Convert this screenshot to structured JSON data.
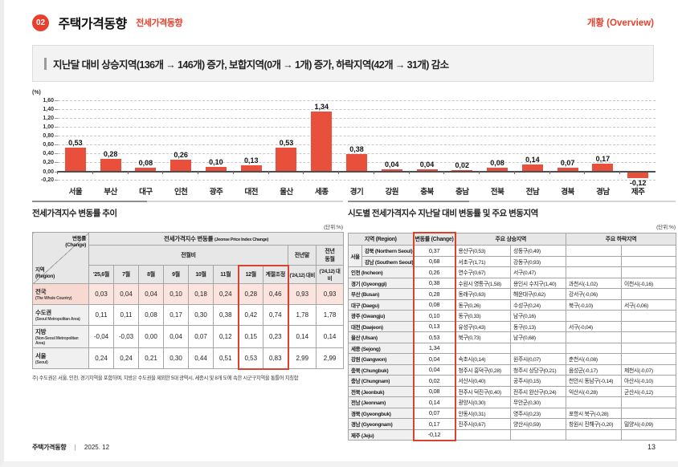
{
  "page": {
    "badge": "02",
    "title": "주택가격동향",
    "subtitle": "전세가격동향",
    "overview_label": "개황 (Overview)",
    "summary": "지난달 대비 상승지역(136개 → 146개) 증가, 보합지역(0개 → 1개) 증가, 하락지역(42개 → 31개) 감소",
    "footer_left": "주택가격동향",
    "footer_divider": "|",
    "footer_date": "2025. 12",
    "page_number": "13"
  },
  "colors": {
    "accent": "#e8402d",
    "bar": "#e8503b",
    "highlight_row": "#fbe3de",
    "red_box_border": "#d9432e"
  },
  "chart_data": {
    "type": "bar",
    "title": "",
    "xlabel": "",
    "ylabel": "(%)",
    "unit_label": "(%)",
    "categories": [
      "서울",
      "부산",
      "대구",
      "인천",
      "광주",
      "대전",
      "울산",
      "세종",
      "경기",
      "강원",
      "충북",
      "충남",
      "전북",
      "전남",
      "경북",
      "경남",
      "제주"
    ],
    "values": [
      0.53,
      0.28,
      0.08,
      0.26,
      0.1,
      0.13,
      0.53,
      1.34,
      0.38,
      0.04,
      0.04,
      0.02,
      0.08,
      0.14,
      0.07,
      0.17,
      -0.12
    ],
    "value_labels": [
      "0,53",
      "0,28",
      "0,08",
      "0,26",
      "0,10",
      "0,13",
      "0,53",
      "1,34",
      "0,38",
      "0,04",
      "0,04",
      "0,02",
      "0,08",
      "0,14",
      "0,07",
      "0,17",
      "-0,12"
    ],
    "ylim": [
      -0.2,
      1.6
    ],
    "ytick_step": 0.2,
    "ytick_labels": [
      "1,60",
      "1,40",
      "1,20",
      "1,00",
      "0,80",
      "0,60",
      "0,40",
      "0,20",
      "0,00",
      "-0,20"
    ],
    "grid": "horizontal-dashed",
    "legend_position": "none"
  },
  "left_table": {
    "title": "전세가격지수 변동률 추이",
    "unit": "(단위:%)",
    "corner_top_ko": "변동률",
    "corner_top_en": "(Change)",
    "corner_bottom_ko": "지역",
    "corner_bottom_en": "(Region)",
    "header_group_ko": "전세가격지수 변동률",
    "header_group_en": "(Jeonse Price Index Change)",
    "subheader_mom": "전월비",
    "col_prev_end": "전년말",
    "col_prev_month_l1": "전년",
    "col_prev_month_l2": "동월",
    "vs_label": "('24,12) 대비",
    "month_cols": [
      "'25,6월",
      "7월",
      "8월",
      "9월",
      "10월",
      "11월",
      "12월",
      "계절조정"
    ],
    "rows": [
      {
        "region": "전국",
        "region_en": "(The Whole Country)",
        "highlight": true,
        "values": [
          "0,03",
          "0,04",
          "0,04",
          "0,10",
          "0,18",
          "0,24",
          "0,28",
          "0,46",
          "0,93",
          "0,93"
        ]
      },
      {
        "region": "수도권",
        "region_en": "(Seoul Metropolitan Area)",
        "highlight": false,
        "values": [
          "0,11",
          "0,11",
          "0,08",
          "0,17",
          "0,30",
          "0,38",
          "0,42",
          "0,74",
          "1,78",
          "1,78"
        ]
      },
      {
        "region": "지방",
        "region_en": "(Non-Seoul Metropolitan Area)",
        "highlight": false,
        "values": [
          "-0,04",
          "-0,03",
          "0,00",
          "0,04",
          "0,07",
          "0,12",
          "0,15",
          "0,23",
          "0,14",
          "0,14"
        ]
      },
      {
        "region": "서울",
        "region_en": "(Seoul)",
        "highlight": false,
        "values": [
          "0,24",
          "0,24",
          "0,21",
          "0,30",
          "0,44",
          "0,51",
          "0,53",
          "0,83",
          "2,99",
          "2,99"
        ]
      }
    ],
    "footnote": "주) 수도권은 서울, 인천, 경기지역을 포함하며, 지방은 수도권을 제외한 5대 광역시, 세종시 및 8개 도에 속한 시군구지역을 통틀어 지칭함"
  },
  "right_table": {
    "title": "시도별 전세가격지수 지난달 대비 변동률 및 주요 변동지역",
    "unit": "(단위:%)",
    "headers": {
      "region": "지역 (Region)",
      "change": "변동률 (Change)",
      "up": "주요 상승지역",
      "down": "주요 하락지역"
    },
    "rows": [
      {
        "group": "서울",
        "region": "강북 (Northern Seoul)",
        "change": "0,37",
        "up1": "용산구(0,53)",
        "up2": "성동구(0,49)",
        "down1": "",
        "down2": ""
      },
      {
        "group": "",
        "region": "강남 (Southern Seoul)",
        "change": "0,68",
        "up1": "서초구(1,71)",
        "up2": "강동구(0,93)",
        "down1": "",
        "down2": ""
      },
      {
        "region": "인천 (Incheon)",
        "change": "0,26",
        "up1": "연수구(0,67)",
        "up2": "서구(0,47)",
        "down1": "",
        "down2": ""
      },
      {
        "region": "경기 (Gyeonggi)",
        "change": "0,38",
        "up1": "수원시 영통구(1,58)",
        "up2": "용인시 수지구(1,40)",
        "down1": "과천시(-1,02)",
        "down2": "이천시(-0,16)"
      },
      {
        "region": "부산 (Busan)",
        "change": "0,28",
        "up1": "동래구(0,63)",
        "up2": "해운대구(0,62)",
        "down1": "강서구(-0,06)",
        "down2": ""
      },
      {
        "region": "대구 (Daegu)",
        "change": "0,08",
        "up1": "동구(0,26)",
        "up2": "수성구(0,24)",
        "down1": "북구(-0,10)",
        "down2": "서구(-0,06)"
      },
      {
        "region": "광주 (Gwangju)",
        "change": "0,10",
        "up1": "동구(0,33)",
        "up2": "남구(0,16)",
        "down1": "",
        "down2": ""
      },
      {
        "region": "대전 (Daejeon)",
        "change": "0,13",
        "up1": "유성구(0,43)",
        "up2": "동구(0,13)",
        "down1": "서구(-0,04)",
        "down2": ""
      },
      {
        "region": "울산 (Ulsan)",
        "change": "0,53",
        "up1": "북구(0,73)",
        "up2": "남구(0,68)",
        "down1": "",
        "down2": ""
      },
      {
        "region": "세종 (Sejong)",
        "change": "1,34",
        "up1": "",
        "up2": "",
        "down1": "",
        "down2": ""
      },
      {
        "region": "강원 (Gangwon)",
        "change": "0,04",
        "up1": "속초시(0,14)",
        "up2": "원주시(0,07)",
        "down1": "춘천시(-0,08)",
        "down2": ""
      },
      {
        "region": "충북 (Chungbuk)",
        "change": "0,04",
        "up1": "청주시 흥덕구(0,28)",
        "up2": "청주시 상당구(0,21)",
        "down1": "음성군(-0,17)",
        "down2": "제천시(-0,07)"
      },
      {
        "region": "충남 (Chungnam)",
        "change": "0,02",
        "up1": "서산시(0,40)",
        "up2": "공주시(0,15)",
        "down1": "천안시 동남구(-0,14)",
        "down2": "아산시(-0,10)"
      },
      {
        "region": "전북 (Jeonbuk)",
        "change": "0,08",
        "up1": "전주시 덕진구(0,40)",
        "up2": "전주시 완산구(0,24)",
        "down1": "익산시(-0,28)",
        "down2": "군산시(-0,12)"
      },
      {
        "region": "전남 (Jeonnam)",
        "change": "0,14",
        "up1": "광양시(0,30)",
        "up2": "무안군(0,30)",
        "down1": "",
        "down2": ""
      },
      {
        "region": "경북 (Gyeongbuk)",
        "change": "0,07",
        "up1": "안동시(0,31)",
        "up2": "영주시(0,23)",
        "down1": "포항시 북구(-0,28)",
        "down2": ""
      },
      {
        "region": "경남 (Gyeongnam)",
        "change": "0,17",
        "up1": "진주시(0,67)",
        "up2": "양산시(0,59)",
        "down1": "창원시 진해구(-0,20)",
        "down2": "밀양시(-0,09)"
      },
      {
        "region": "제주 (Jeju)",
        "change": "-0,12",
        "up1": "",
        "up2": "",
        "down1": "",
        "down2": ""
      }
    ]
  }
}
